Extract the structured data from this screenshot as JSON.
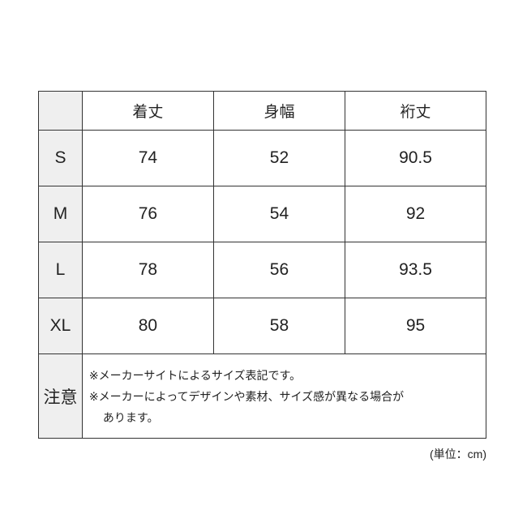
{
  "header": [
    "",
    "着丈",
    "身幅",
    "裄丈"
  ],
  "rows": [
    {
      "size": "S",
      "values": [
        "74",
        "52",
        "90.5"
      ]
    },
    {
      "size": "M",
      "values": [
        "76",
        "54",
        "92"
      ]
    },
    {
      "size": "L",
      "values": [
        "78",
        "56",
        "93.5"
      ]
    },
    {
      "size": "XL",
      "values": [
        "80",
        "58",
        "95"
      ]
    }
  ],
  "note": {
    "label": "注意",
    "lines": [
      "※メーカーサイトによるサイズ表記です。",
      "※メーカーによってデザインや素材、サイズ感が異なる場合が",
      "あります。"
    ]
  },
  "unit": "(単位：cm)"
}
